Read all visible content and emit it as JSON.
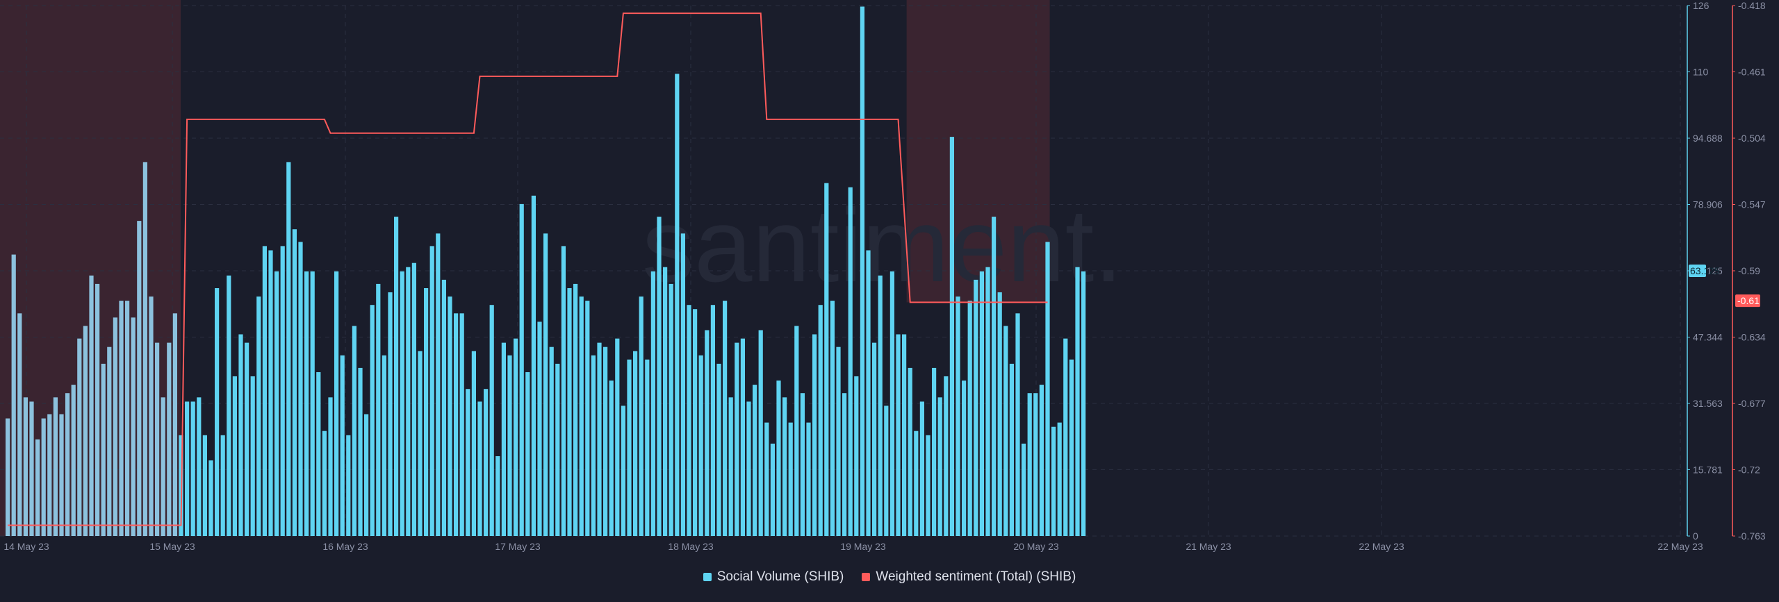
{
  "colors": {
    "background": "#1a1d2b",
    "volume_bar": "#5fd4f2",
    "volume_bar_highlight": "#8cc2de",
    "sentiment_line": "#ff5b5b",
    "negative_zone": "#3a2430",
    "grid": "#2b2f40",
    "tick_text": "#8b90a5"
  },
  "watermark": "santiment.",
  "legend": {
    "volume": "Social Volume (SHIB)",
    "sentiment": "Weighted sentiment (Total) (SHIB)"
  },
  "current_values": {
    "volume": "63.125",
    "sentiment": "-0.61"
  },
  "chart_data": {
    "type": "bar",
    "x_tick_labels": [
      "14 May 23",
      "15 May 23",
      "16 May 23",
      "17 May 23",
      "18 May 23",
      "19 May 23",
      "20 May 23",
      "21 May 23",
      "22 May 23",
      "22 May 23"
    ],
    "y_left": {
      "label": "Social Volume (SHIB)",
      "ticks": [
        "126",
        "110",
        "94.688",
        "78.906",
        "63.125",
        "47.344",
        "31.563",
        "15.781",
        "0"
      ],
      "range": [
        0,
        126.25
      ]
    },
    "y_right": {
      "label": "Weighted sentiment (Total) (SHIB)",
      "ticks": [
        "-0.418",
        "-0.461",
        "-0.504",
        "-0.547",
        "-0.59",
        "-0.634",
        "-0.677",
        "-0.72",
        "-0.763"
      ],
      "range": [
        -0.763,
        -0.418
      ]
    },
    "grid": true,
    "legend_position": "bottom-center",
    "highlight_bar_count": 29,
    "series": [
      {
        "name": "Social Volume (SHIB)",
        "kind": "bar",
        "values": [
          28,
          67,
          53,
          33,
          32,
          23,
          28,
          29,
          33,
          29,
          34,
          36,
          47,
          50,
          62,
          60,
          41,
          45,
          52,
          56,
          56,
          52,
          75,
          89,
          57,
          46,
          33,
          46,
          53,
          24,
          32,
          32,
          33,
          24,
          18,
          59,
          24,
          62,
          38,
          48,
          46,
          38,
          57,
          69,
          68,
          63,
          69,
          89,
          73,
          70,
          63,
          63,
          39,
          25,
          33,
          63,
          43,
          24,
          50,
          40,
          29,
          55,
          60,
          43,
          58,
          76,
          63,
          64,
          65,
          44,
          59,
          69,
          72,
          61,
          57,
          53,
          53,
          35,
          44,
          32,
          35,
          55,
          19,
          46,
          43,
          47,
          79,
          39,
          81,
          51,
          72,
          45,
          41,
          69,
          59,
          60,
          57,
          56,
          43,
          46,
          45,
          37,
          47,
          31,
          42,
          44,
          57,
          42,
          63,
          76,
          64,
          60,
          110,
          72,
          55,
          54,
          43,
          49,
          55,
          41,
          56,
          33,
          46,
          47,
          32,
          36,
          49,
          27,
          22,
          37,
          33,
          27,
          50,
          34,
          27,
          48,
          55,
          84,
          56,
          45,
          34,
          83,
          38,
          126,
          68,
          46,
          62,
          31,
          63,
          48,
          48,
          40,
          25,
          32,
          24,
          40,
          33,
          38,
          95,
          57,
          37,
          56,
          61,
          63,
          64,
          76,
          58,
          50,
          41,
          53,
          22,
          34,
          34,
          36,
          70,
          26,
          27,
          47,
          42,
          64,
          63
        ]
      },
      {
        "name": "Weighted sentiment (Total) (SHIB)",
        "kind": "step-line",
        "points": [
          [
            0,
            -0.756
          ],
          [
            29,
            -0.756
          ],
          [
            30,
            -0.492
          ],
          [
            53,
            -0.492
          ],
          [
            54,
            -0.501
          ],
          [
            78,
            -0.501
          ],
          [
            79,
            -0.464
          ],
          [
            102,
            -0.464
          ],
          [
            103,
            -0.423
          ],
          [
            126,
            -0.423
          ],
          [
            127,
            -0.492
          ],
          [
            149,
            -0.492
          ],
          [
            151,
            -0.611
          ],
          [
            174,
            -0.611
          ]
        ]
      }
    ]
  }
}
